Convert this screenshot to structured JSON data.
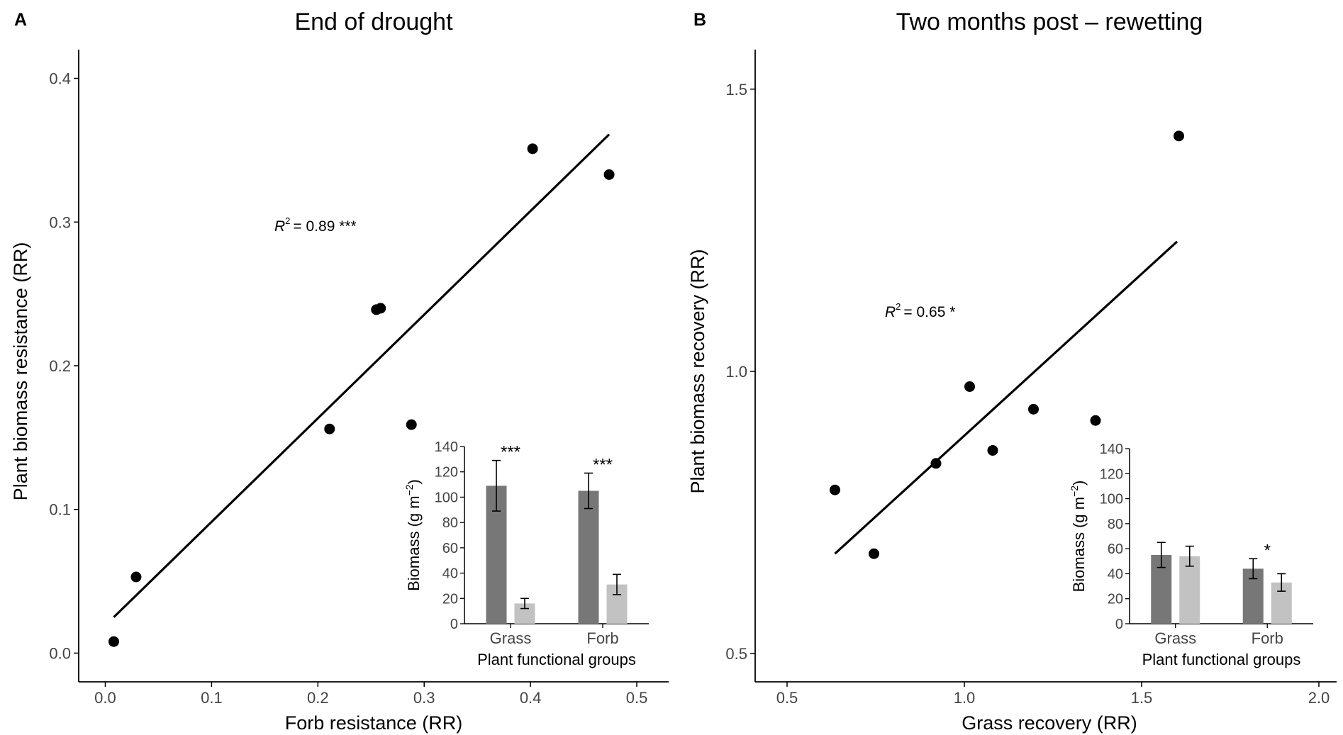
{
  "figure": {
    "panels": [
      {
        "letter": "A",
        "title": "End of drought",
        "annotation": {
          "r2_symbol": "R",
          "r2_exp": "2",
          "r2_value": "= 0.89 ***"
        }
      },
      {
        "letter": "B",
        "title": "Two months post – rewetting",
        "annotation": {
          "r2_symbol": "R",
          "r2_exp": "2",
          "r2_value": "= 0.65 *"
        }
      }
    ]
  },
  "chart_data": [
    {
      "type": "scatter",
      "title": "End of drought",
      "xlabel": "Forb resistance (RR)",
      "ylabel": "Plant biomass resistance (RR)",
      "xlim": [
        -0.025,
        0.53
      ],
      "ylim": [
        -0.02,
        0.42
      ],
      "xticks": [
        0.0,
        0.1,
        0.2,
        0.3,
        0.4,
        0.5
      ],
      "yticks": [
        0.0,
        0.1,
        0.2,
        0.3,
        0.4
      ],
      "xtick_labels": [
        "0.0",
        "0.1",
        "0.2",
        "0.3",
        "0.4",
        "0.5"
      ],
      "ytick_labels": [
        "0.0",
        "0.1",
        "0.2",
        "0.3",
        "0.4"
      ],
      "grid": false,
      "points": [
        {
          "x": 0.008,
          "y": 0.008
        },
        {
          "x": 0.029,
          "y": 0.053
        },
        {
          "x": 0.211,
          "y": 0.156
        },
        {
          "x": 0.255,
          "y": 0.239
        },
        {
          "x": 0.259,
          "y": 0.24
        },
        {
          "x": 0.288,
          "y": 0.159
        },
        {
          "x": 0.402,
          "y": 0.351
        },
        {
          "x": 0.474,
          "y": 0.333
        }
      ],
      "fit_line": {
        "x": [
          0.008,
          0.474
        ],
        "y": [
          0.025,
          0.361
        ]
      },
      "inset": {
        "type": "bar",
        "xlabel": "Plant functional groups",
        "ylabel": "Biomass (g m",
        "ylabel_exp": "−2",
        "ylabel_close": ")",
        "categories": [
          "Grass",
          "Forb"
        ],
        "ylim": [
          0,
          140
        ],
        "yticks": [
          0,
          20,
          40,
          60,
          80,
          100,
          120,
          140
        ],
        "ytick_labels": [
          "0",
          "20",
          "40",
          "60",
          "80",
          "100",
          "120",
          "140"
        ],
        "series": [
          {
            "color": "#777777",
            "values": [
              109,
              105
            ],
            "errors": [
              20,
              14
            ]
          },
          {
            "color": "#c2c2c2",
            "values": [
              16,
              31
            ],
            "errors": [
              4,
              8
            ]
          }
        ],
        "significance": [
          "***",
          "***"
        ]
      }
    },
    {
      "type": "scatter",
      "title": "Two months post – rewetting",
      "xlabel": "Grass recovery (RR)",
      "ylabel": "Plant biomass recovery (RR)",
      "xlim": [
        0.41,
        2.05
      ],
      "ylim": [
        0.45,
        1.57
      ],
      "xticks": [
        0.5,
        1.0,
        1.5,
        2.0
      ],
      "yticks": [
        0.5,
        1.0,
        1.5
      ],
      "xtick_labels": [
        "0.5",
        "1.0",
        "1.5",
        "2.0"
      ],
      "ytick_labels": [
        "0.5",
        "1.0",
        "1.5"
      ],
      "grid": false,
      "points": [
        {
          "x": 0.635,
          "y": 0.79
        },
        {
          "x": 0.745,
          "y": 0.677
        },
        {
          "x": 0.92,
          "y": 0.837
        },
        {
          "x": 1.015,
          "y": 0.973
        },
        {
          "x": 1.08,
          "y": 0.86
        },
        {
          "x": 1.195,
          "y": 0.933
        },
        {
          "x": 1.37,
          "y": 0.913
        },
        {
          "x": 1.605,
          "y": 1.417
        }
      ],
      "fit_line": {
        "x": [
          0.635,
          1.6
        ],
        "y": [
          0.677,
          1.23
        ]
      },
      "inset": {
        "type": "bar",
        "xlabel": "Plant functional groups",
        "ylabel": "Biomass (g m",
        "ylabel_exp": "−2",
        "ylabel_close": ")",
        "categories": [
          "Grass",
          "Forb"
        ],
        "ylim": [
          0,
          140
        ],
        "yticks": [
          0,
          20,
          40,
          60,
          80,
          100,
          120,
          140
        ],
        "ytick_labels": [
          "0",
          "20",
          "40",
          "60",
          "80",
          "100",
          "120",
          "140"
        ],
        "series": [
          {
            "color": "#777777",
            "values": [
              55,
              44
            ],
            "errors": [
              10,
              8
            ]
          },
          {
            "color": "#c2c2c2",
            "values": [
              54,
              33
            ],
            "errors": [
              8,
              7
            ]
          }
        ],
        "significance": [
          "",
          "*"
        ]
      }
    }
  ]
}
